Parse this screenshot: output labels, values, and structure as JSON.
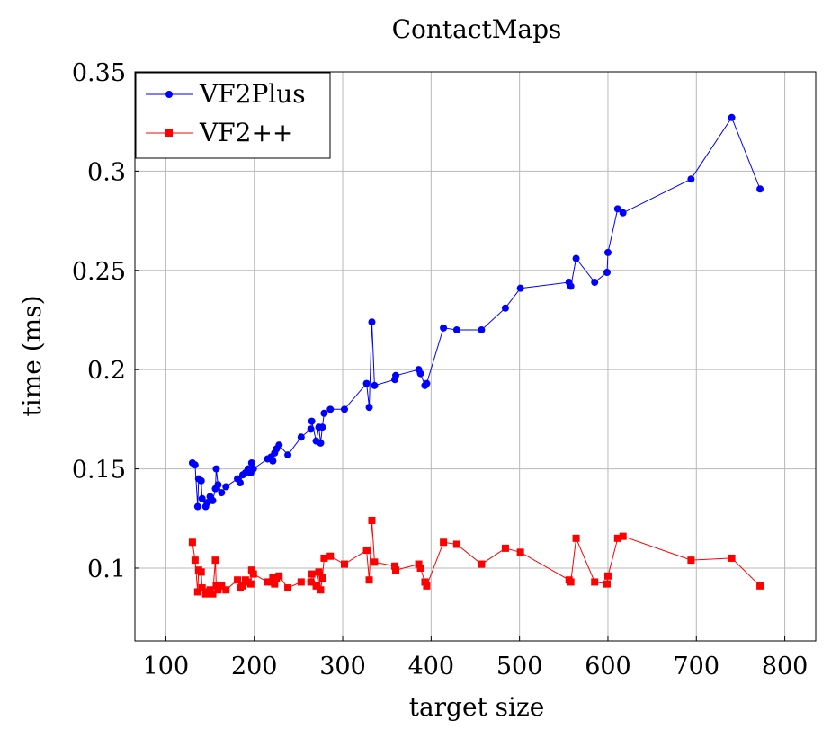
{
  "chart_data": {
    "type": "line",
    "title": "ContactMaps",
    "xlabel": "target size",
    "ylabel": "time (ms)",
    "xlim": [
      65,
      835
    ],
    "ylim": [
      0.0633,
      0.35
    ],
    "xticks": [
      100,
      200,
      300,
      400,
      500,
      600,
      700,
      800
    ],
    "yticks": [
      0.1,
      0.15,
      0.2,
      0.25,
      0.3,
      0.35
    ],
    "xtick_labels": [
      "100",
      "200",
      "300",
      "400",
      "500",
      "600",
      "700",
      "800"
    ],
    "ytick_labels": [
      "0.1",
      "0.15",
      "0.2",
      "0.25",
      "0.3",
      "0.35"
    ],
    "grid": true,
    "legend_position": "top-left",
    "x": [
      130,
      133,
      136,
      137,
      140,
      141,
      145,
      147,
      150,
      153,
      156,
      157,
      159,
      163,
      168,
      181,
      184,
      187,
      190,
      193,
      196,
      197,
      199,
      215,
      219,
      221,
      223,
      225,
      228,
      238,
      253,
      264,
      265,
      270,
      273,
      275,
      277,
      279,
      286,
      302,
      327,
      330,
      333,
      336,
      359,
      360,
      386,
      388,
      393,
      395,
      414,
      429,
      457,
      484,
      501,
      556,
      558,
      564,
      585,
      599,
      600,
      611,
      617,
      694,
      740,
      772
    ],
    "series": [
      {
        "name": "VF2Plus",
        "color": "#0000ff",
        "marker": "circle",
        "values": [
          0.153,
          0.152,
          0.131,
          0.145,
          0.144,
          0.135,
          0.131,
          0.133,
          0.136,
          0.134,
          0.14,
          0.15,
          0.142,
          0.138,
          0.141,
          0.145,
          0.143,
          0.147,
          0.148,
          0.15,
          0.148,
          0.153,
          0.15,
          0.155,
          0.156,
          0.154,
          0.158,
          0.16,
          0.162,
          0.157,
          0.166,
          0.17,
          0.174,
          0.164,
          0.171,
          0.163,
          0.171,
          0.178,
          0.18,
          0.18,
          0.193,
          0.181,
          0.224,
          0.192,
          0.195,
          0.197,
          0.2,
          0.198,
          0.192,
          0.193,
          0.221,
          0.22,
          0.22,
          0.231,
          0.241,
          0.244,
          0.242,
          0.256,
          0.244,
          0.249,
          0.259,
          0.281,
          0.279,
          0.296,
          0.327,
          0.291
        ]
      },
      {
        "name": "VF2++",
        "color": "#ff0000",
        "marker": "square",
        "values": [
          0.113,
          0.104,
          0.088,
          0.099,
          0.098,
          0.09,
          0.087,
          0.088,
          0.089,
          0.087,
          0.104,
          0.091,
          0.089,
          0.091,
          0.089,
          0.094,
          0.09,
          0.091,
          0.094,
          0.093,
          0.092,
          0.099,
          0.097,
          0.093,
          0.093,
          0.095,
          0.092,
          0.095,
          0.096,
          0.09,
          0.093,
          0.093,
          0.097,
          0.091,
          0.098,
          0.089,
          0.095,
          0.105,
          0.106,
          0.102,
          0.109,
          0.094,
          0.124,
          0.103,
          0.101,
          0.099,
          0.102,
          0.1,
          0.093,
          0.091,
          0.113,
          0.112,
          0.102,
          0.11,
          0.108,
          0.094,
          0.093,
          0.115,
          0.093,
          0.092,
          0.096,
          0.115,
          0.116,
          0.104,
          0.105,
          0.091
        ]
      }
    ]
  }
}
